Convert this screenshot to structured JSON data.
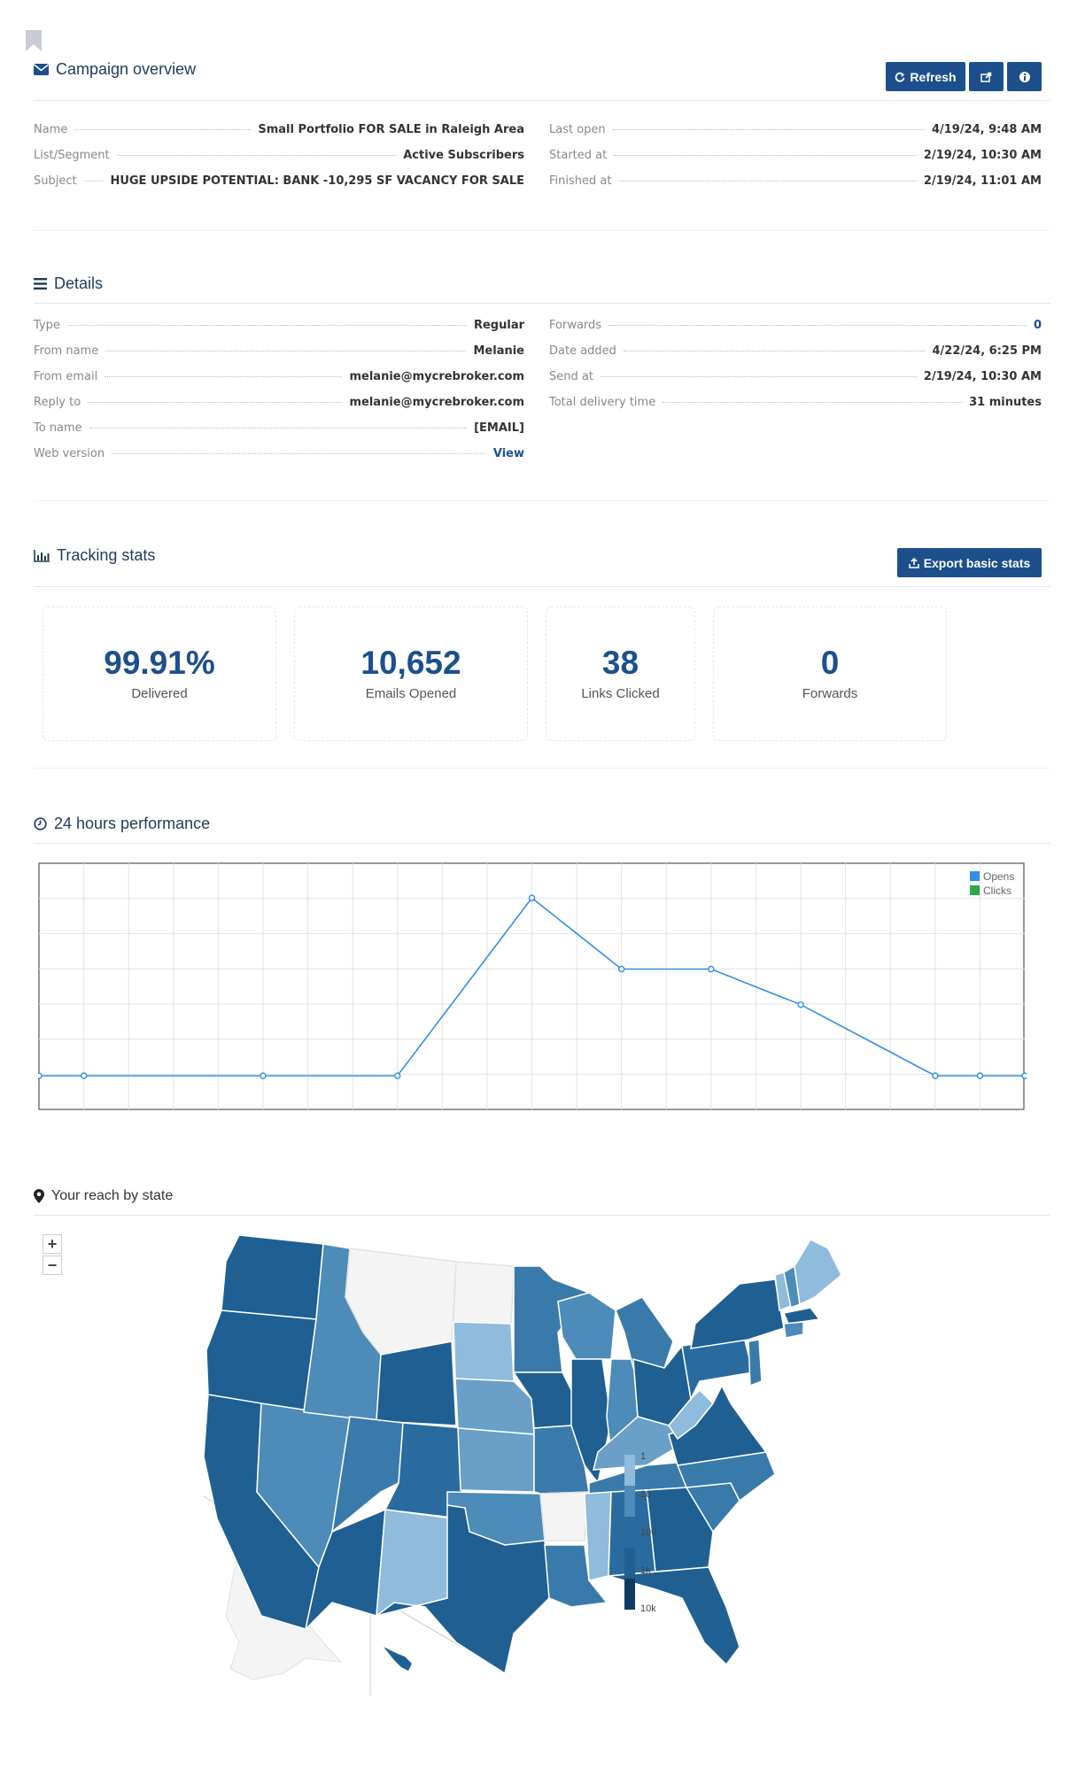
{
  "campaign_overview": {
    "title": "Campaign overview",
    "buttons": {
      "refresh": "Refresh"
    },
    "left": [
      {
        "key": "Name",
        "value": "Small Portfolio FOR SALE in Raleigh Area"
      },
      {
        "key": "List/Segment",
        "value": "Active Subscribers"
      },
      {
        "key": "Subject",
        "value": "HUGE UPSIDE POTENTIAL: BANK -10,295 SF VACANCY FOR SALE"
      }
    ],
    "right": [
      {
        "key": "Last open",
        "value": "4/19/24, 9:48 AM"
      },
      {
        "key": "Started at",
        "value": "2/19/24, 10:30 AM"
      },
      {
        "key": "Finished at",
        "value": "2/19/24, 11:01 AM"
      }
    ]
  },
  "details": {
    "title": "Details",
    "left": [
      {
        "key": "Type",
        "value": "Regular"
      },
      {
        "key": "From name",
        "value": "Melanie"
      },
      {
        "key": "From email",
        "value": "melanie@mycrebroker.com"
      },
      {
        "key": "Reply to",
        "value": "melanie@mycrebroker.com"
      },
      {
        "key": "To name",
        "value": "[EMAIL]"
      },
      {
        "key": "Web version",
        "value": "View"
      }
    ],
    "right": [
      {
        "key": "Forwards",
        "value": "0"
      },
      {
        "key": "Date added",
        "value": "4/22/24, 6:25 PM"
      },
      {
        "key": "Send at",
        "value": "2/19/24, 10:30 AM"
      },
      {
        "key": "Total delivery time",
        "value": "31 minutes"
      }
    ]
  },
  "tracking": {
    "title": "Tracking stats",
    "export_label": "Export basic stats",
    "cards": [
      {
        "value": "99.91%",
        "label": "Delivered"
      },
      {
        "value": "10,652",
        "label": "Emails Opened"
      },
      {
        "value": "38",
        "label": "Links Clicked"
      },
      {
        "value": "0",
        "label": "Forwards"
      }
    ]
  },
  "performance": {
    "title": "24 hours performance",
    "legend": {
      "opens": "Opens",
      "clicks": "Clicks"
    },
    "colors": {
      "opens": "#2f8fe8",
      "clicks": "#2aa84a"
    }
  },
  "chart_data": {
    "type": "line",
    "title": "",
    "x": [
      0,
      1,
      5,
      8,
      11,
      13,
      15,
      17,
      20,
      21,
      22
    ],
    "series": [
      {
        "name": "Opens",
        "values": [
          0,
          0,
          0,
          0,
          5,
          3,
          3,
          2,
          0,
          0,
          0
        ]
      }
    ],
    "xlim": [
      0,
      22
    ],
    "ylim": [
      0,
      6
    ],
    "grid": true,
    "legend": "top-right"
  },
  "reach": {
    "title": "Your reach by state",
    "zoom_in": "+",
    "zoom_out": "−",
    "legend_ticks": [
      "1",
      "10",
      "100",
      "1k",
      "10k"
    ]
  }
}
